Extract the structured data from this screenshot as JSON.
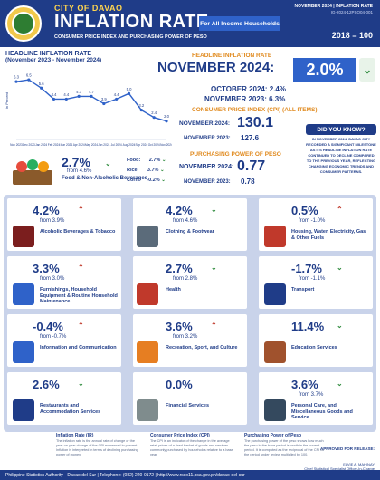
{
  "header": {
    "city": "CITY OF DAVAO",
    "title": "INFLATION RATE",
    "subtitle": "CONSUMER PRICE INDEX AND PURCHASING POWER OF PESO",
    "pill": "For All Income Households",
    "ref_line1": "NOVEMBER 2024  |  INFLATION RATE",
    "ref_line2": "IG-2024-12PSO04-001",
    "base_year": "2018 = 100"
  },
  "chart": {
    "title": "HEADLINE INFLATION RATE",
    "subtitle": "(November 2023 - November 2024)",
    "ylabel": "in Percent"
  },
  "chart_data": {
    "type": "line",
    "x": [
      "Nov 2023",
      "Dec 2023",
      "Jan 2024",
      "Feb 2024",
      "Mar 2024",
      "Apr 2024",
      "May 2024",
      "Jun 2024",
      "Jul 2024",
      "Aug 2024",
      "Sep 2024",
      "Oct 2024",
      "Nov 2024"
    ],
    "values": [
      6.3,
      6.5,
      5.6,
      4.4,
      4.4,
      4.7,
      4.7,
      3.9,
      4.4,
      5.0,
      3.2,
      2.4,
      2.0
    ],
    "labels": [
      "6.3",
      "6.5",
      "5.6",
      "4.4",
      "4.4",
      "4.7",
      "4.7",
      "3.9",
      "4.4",
      "5.0",
      "3.2",
      "2.4",
      "2.0"
    ],
    "ylim": [
      0,
      7.5
    ],
    "color": "#2f62c9"
  },
  "headline": {
    "label": "HEADLINE INFLATION RATE",
    "nov_label": "NOVEMBER 2024:",
    "nov_value": "2.0%",
    "oct": "OCTOBER 2024: 2.4%",
    "nov23": "NOVEMBER 2023: 6.3%"
  },
  "cpi": {
    "label": "CONSUMER PRICE INDEX (CPI) (ALL ITEMS)",
    "nov_label": "NOVEMBER 2024:",
    "nov_value": "130.1",
    "nov23_label": "NOVEMBER 2023:",
    "nov23_value": "127.6"
  },
  "ppp": {
    "label": "PURCHASING POWER OF PESO",
    "nov_label": "NOVEMBER 2024:",
    "nov_value": "0.77",
    "nov23_label": "NOVEMBER 2023:",
    "nov23_value": "0.78"
  },
  "dyk": {
    "title": "DID YOU KNOW?",
    "text": "IN NOVEMBER 2024, DAVAO CITY RECORDED A SIGNIFICANT MILESTONE AS ITS HEADLINE INFLATION RATE CONTINUED TO DECLINE COMPARED TO THE PREVIOUS YEAR, REFLECTING CHANGING ECONOMIC TRENDS AND CONSUMER PATTERNS."
  },
  "food": {
    "value": "2.7%",
    "from": "from 4.6%",
    "label": "Food & Non-Alcoholic Beverages",
    "breakdown": [
      {
        "name": "Food:",
        "value": "2.7%"
      },
      {
        "name": "Rice:",
        "value": "3.7%"
      },
      {
        "name": "Corn:",
        "value": "-0.2%"
      }
    ]
  },
  "cards": [
    {
      "value": "4.2%",
      "from": "from 3.9%",
      "label": "Alcoholic Beverages & Tobacco",
      "trend": "up"
    },
    {
      "value": "4.2%",
      "from": "from 4.6%",
      "label": "Clothing & Footwear",
      "trend": "down"
    },
    {
      "value": "0.5%",
      "from": "from -1.0%",
      "label": "Housing, Water, Electricity, Gas & Other Fuels",
      "trend": "up"
    },
    {
      "value": "3.3%",
      "from": "from 3.0%",
      "label": "Furnishings, Household Equipment & Routine Household Maintenance",
      "trend": "up"
    },
    {
      "value": "2.7%",
      "from": "from 2.8%",
      "label": "Health",
      "trend": "down"
    },
    {
      "value": "-1.7%",
      "from": "from -1.1%",
      "label": "Transport",
      "trend": "down"
    },
    {
      "value": "-0.4%",
      "from": "from -0.7%",
      "label": "Information and Communication",
      "trend": "up"
    },
    {
      "value": "3.6%",
      "from": "from 3.2%",
      "label": "Recreation, Sport, and Culture",
      "trend": "up"
    },
    {
      "value": "11.4%",
      "from": "",
      "label": "Education Services",
      "trend": "down"
    },
    {
      "value": "2.6%",
      "from": "",
      "label": "Restaurants and Accommodation Services",
      "trend": "down"
    },
    {
      "value": "0.0%",
      "from": "",
      "label": "Financial Services",
      "trend": "none"
    },
    {
      "value": "3.6%",
      "from": "from 3.7%",
      "label": "Personal Care, and Miscellaneous Goods and Service",
      "trend": "down"
    }
  ],
  "notes": [
    {
      "title": "Inflation Rate (IR)",
      "text": "The inflation rate is the annual rate of change or the year-on-year change of the CPI expressed in percent. Inflation is interpreted in terms of declining purchasing power of money."
    },
    {
      "title": "Consumer Price Index (CPI)",
      "text": "The CPI is an indicator of the change in the average retail prices of a fixed basket of goods and services commonly purchased by households relative to a base year."
    },
    {
      "title": "Purchasing Power of Peso",
      "text": "The purchasing power of the peso shows how much the peso in the base period is worth in the current period. It is computed as the reciprocal of the CPI for the period under review multiplied by 100."
    }
  ],
  "signature": {
    "title": "APPROVED FOR RELEASE:",
    "name": "ELVIE A. MAHINAY",
    "role": "Chief Statistical Specialist Officer-In-Charge"
  },
  "footer": {
    "left": "Philippine Statistics Authority - Davao del Sur  |  Telephone: (082) 220-0172  |  http://www.rsso11.psa.gov.ph/davao-del-sur",
    "right": ""
  },
  "colors": {
    "navy": "#1f3c88",
    "blue": "#2f62c9",
    "orange": "#e08a1e",
    "up": "#c0392b",
    "down": "#2e8b3d"
  }
}
